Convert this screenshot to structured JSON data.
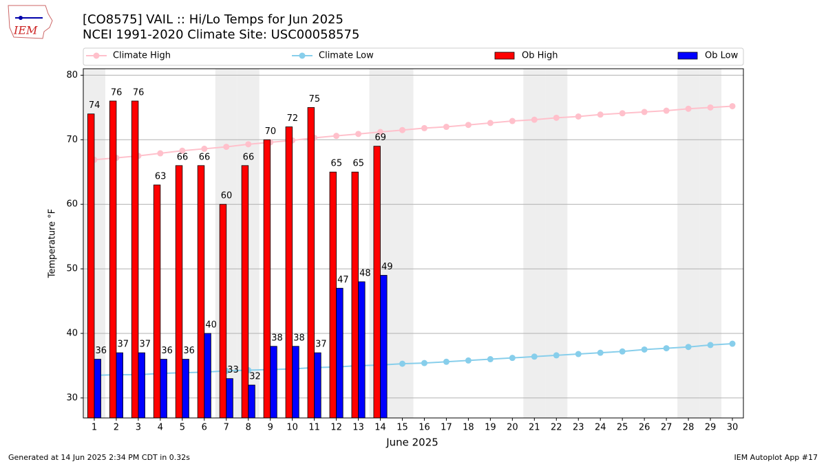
{
  "chart_data": {
    "type": "bar_line",
    "title": "[CO8575] VAIL :: Hi/Lo Temps for Jun 2025",
    "subtitle": "NCEI 1991-2020 Climate Site: USC00058575",
    "x_label": "June 2025",
    "y_label": "Temperature °F",
    "x": [
      1,
      2,
      3,
      4,
      5,
      6,
      7,
      8,
      9,
      10,
      11,
      12,
      13,
      14,
      15,
      16,
      17,
      18,
      19,
      20,
      21,
      22,
      23,
      24,
      25,
      26,
      27,
      28,
      29,
      30
    ],
    "xlim": [
      0.5,
      30.5
    ],
    "ylim": [
      26.9,
      81.0
    ],
    "yticks": [
      30,
      40,
      50,
      60,
      70,
      80
    ],
    "grid": true,
    "shaded_days": [
      1,
      7,
      8,
      14,
      15,
      21,
      22,
      28,
      29
    ],
    "shade_color": "#eeeeee",
    "series": [
      {
        "name": "Climate High",
        "kind": "line",
        "color": "#ffc0cb",
        "values": [
          66.9,
          67.2,
          67.5,
          67.9,
          68.3,
          68.6,
          68.9,
          69.3,
          69.6,
          69.9,
          70.3,
          70.6,
          70.9,
          71.2,
          71.5,
          71.8,
          72.0,
          72.3,
          72.6,
          72.9,
          73.1,
          73.4,
          73.6,
          73.9,
          74.1,
          74.3,
          74.5,
          74.8,
          75.0,
          75.2
        ]
      },
      {
        "name": "Climate Low",
        "kind": "line",
        "color": "#87ceeb",
        "values": [
          33.5,
          33.6,
          33.6,
          33.8,
          33.9,
          34.0,
          34.2,
          34.3,
          34.4,
          34.5,
          34.7,
          34.8,
          35.0,
          35.1,
          35.3,
          35.4,
          35.6,
          35.8,
          36.0,
          36.2,
          36.4,
          36.6,
          36.8,
          37.0,
          37.2,
          37.5,
          37.7,
          37.9,
          38.2,
          38.4
        ]
      },
      {
        "name": "Ob High",
        "kind": "bar",
        "offset": -0.3,
        "color": "#ff0000",
        "values": [
          74,
          76,
          76,
          63,
          66,
          66,
          60,
          66,
          70,
          72,
          75,
          65,
          65,
          69,
          null,
          null,
          null,
          null,
          null,
          null,
          null,
          null,
          null,
          null,
          null,
          null,
          null,
          null,
          null,
          null
        ]
      },
      {
        "name": "Ob Low",
        "kind": "bar",
        "offset": 0,
        "color": "#0000ff",
        "values": [
          36,
          37,
          37,
          36,
          36,
          40,
          33,
          32,
          38,
          38,
          37,
          47,
          48,
          49,
          null,
          null,
          null,
          null,
          null,
          null,
          null,
          null,
          null,
          null,
          null,
          null,
          null,
          null,
          null,
          null
        ]
      }
    ],
    "logo_text": "IEM",
    "footer_left": "Generated at 14 Jun 2025 2:34 PM CDT in 0.32s",
    "footer_right": "IEM Autoplot App #17"
  }
}
